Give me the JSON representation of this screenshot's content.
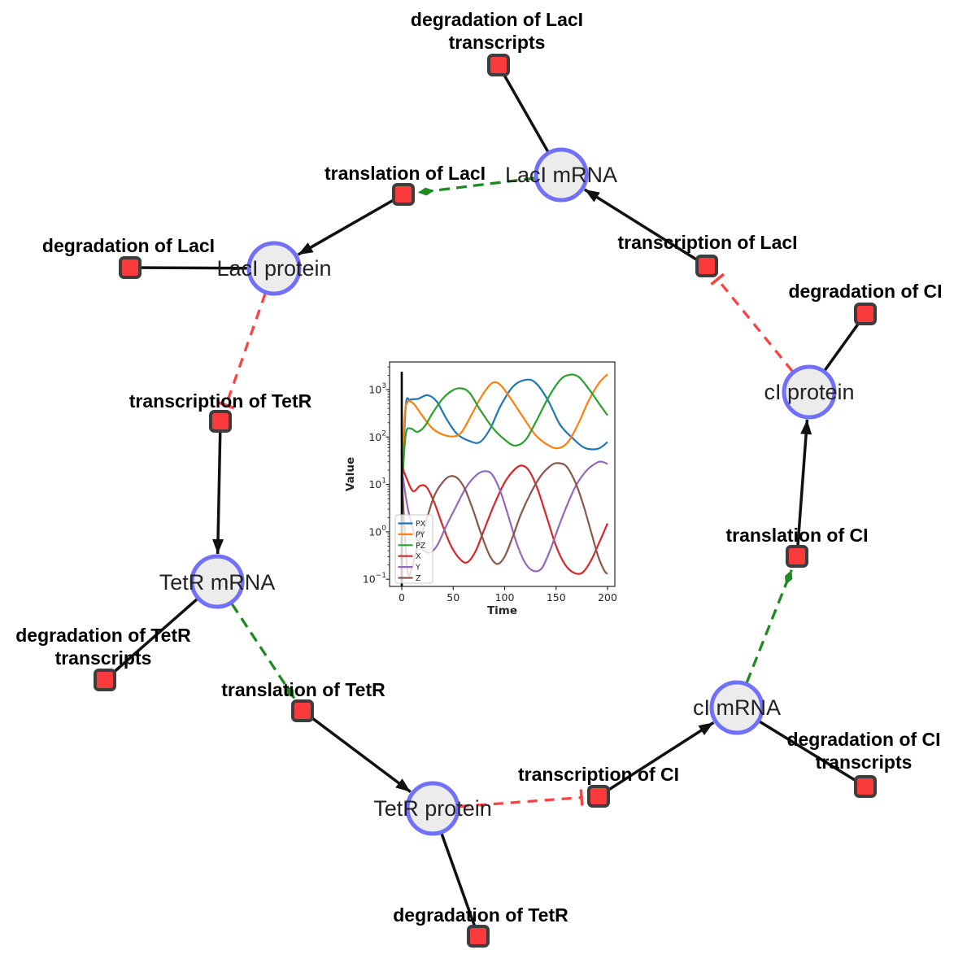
{
  "background": "#ffffff",
  "colors": {
    "species_fill": "#ececec",
    "species_border": "#7070fa",
    "reaction_fill": "#fb3b3b",
    "reaction_border": "#3d3d3d",
    "edge": "#111111",
    "modifier_edge": "#1e8b22",
    "inhibition_edge": "#fb4343",
    "chart_spine": "#262626",
    "vline": "#000000"
  },
  "network": {
    "species": [
      {
        "id": "laci_mrna",
        "label": "LacI mRNA"
      },
      {
        "id": "laci_protein",
        "label": "LacI protein"
      },
      {
        "id": "tetr_mrna",
        "label": "TetR mRNA"
      },
      {
        "id": "tetr_protein",
        "label": "TetR protein"
      },
      {
        "id": "ci_mrna",
        "label": "cI mRNA"
      },
      {
        "id": "ci_protein",
        "label": "cI protein"
      }
    ],
    "reactions": [
      {
        "id": "deg_laci_tx",
        "lines": [
          "degradation of LacI",
          "transcripts"
        ]
      },
      {
        "id": "transl_laci",
        "lines": [
          "translation of LacI"
        ]
      },
      {
        "id": "deg_laci",
        "lines": [
          "degradation of LacI"
        ]
      },
      {
        "id": "txn_laci",
        "lines": [
          "transcription of LacI"
        ]
      },
      {
        "id": "deg_ci",
        "lines": [
          "degradation of CI"
        ]
      },
      {
        "id": "txn_tetr",
        "lines": [
          "transcription of TetR"
        ]
      },
      {
        "id": "deg_tetr_tx",
        "lines": [
          "degradation of TetR",
          "transcripts"
        ]
      },
      {
        "id": "transl_tetr",
        "lines": [
          "translation of TetR"
        ]
      },
      {
        "id": "deg_tetr",
        "lines": [
          "degradation of TetR"
        ]
      },
      {
        "id": "txn_ci",
        "lines": [
          "transcription of CI"
        ]
      },
      {
        "id": "deg_ci_tx",
        "lines": [
          "degradation of CI",
          "transcripts"
        ]
      },
      {
        "id": "transl_ci",
        "lines": [
          "translation of CI"
        ]
      }
    ],
    "edges": [
      {
        "source": "laci_mrna",
        "target": "deg_laci_tx",
        "type": "reactant"
      },
      {
        "source": "laci_protein",
        "target": "deg_laci",
        "type": "reactant"
      },
      {
        "source": "tetr_mrna",
        "target": "deg_tetr_tx",
        "type": "reactant"
      },
      {
        "source": "tetr_protein",
        "target": "deg_tetr",
        "type": "reactant"
      },
      {
        "source": "ci_mrna",
        "target": "deg_ci_tx",
        "type": "reactant"
      },
      {
        "source": "ci_protein",
        "target": "deg_ci",
        "type": "reactant"
      },
      {
        "source": "txn_laci",
        "target": "laci_mrna",
        "type": "product"
      },
      {
        "source": "transl_laci",
        "target": "laci_protein",
        "type": "product"
      },
      {
        "source": "txn_tetr",
        "target": "tetr_mrna",
        "type": "product"
      },
      {
        "source": "transl_tetr",
        "target": "tetr_protein",
        "type": "product"
      },
      {
        "source": "txn_ci",
        "target": "ci_mrna",
        "type": "product"
      },
      {
        "source": "transl_ci",
        "target": "ci_protein",
        "type": "product"
      },
      {
        "source": "laci_mrna",
        "target": "transl_laci",
        "type": "modifier"
      },
      {
        "source": "tetr_mrna",
        "target": "transl_tetr",
        "type": "modifier"
      },
      {
        "source": "ci_mrna",
        "target": "transl_ci",
        "type": "modifier"
      },
      {
        "source": "laci_protein",
        "target": "txn_tetr",
        "type": "inhibition"
      },
      {
        "source": "tetr_protein",
        "target": "txn_ci",
        "type": "inhibition"
      },
      {
        "source": "ci_protein",
        "target": "txn_laci",
        "type": "inhibition"
      }
    ]
  },
  "chart_data": {
    "type": "line",
    "title": "",
    "xlabel": "Time",
    "ylabel": "Value",
    "x_ticks": [
      0,
      50,
      100,
      150,
      200
    ],
    "xlim": [
      -12,
      207
    ],
    "y_scale": "log",
    "y_tick_exponents": [
      3,
      2,
      1,
      0,
      -1
    ],
    "ylim": [
      0.07,
      3800
    ],
    "grid": false,
    "legend_position": "lower left",
    "vline_x": 0,
    "series": [
      {
        "name": "PX",
        "color": "#1f77b4",
        "points": [
          [
            1,
            20
          ],
          [
            4,
            480
          ],
          [
            8,
            610
          ],
          [
            16,
            640
          ],
          [
            25,
            760
          ],
          [
            34,
            560
          ],
          [
            44,
            230
          ],
          [
            54,
            115
          ],
          [
            66,
            82
          ],
          [
            76,
            78
          ],
          [
            86,
            150
          ],
          [
            96,
            450
          ],
          [
            108,
            1150
          ],
          [
            120,
            1600
          ],
          [
            130,
            1400
          ],
          [
            142,
            600
          ],
          [
            154,
            180
          ],
          [
            166,
            95
          ],
          [
            176,
            62
          ],
          [
            184,
            55
          ],
          [
            192,
            58
          ],
          [
            200,
            78
          ]
        ]
      },
      {
        "name": "PY",
        "color": "#ff7f0e",
        "points": [
          [
            1,
            25
          ],
          [
            3,
            300
          ],
          [
            6,
            560
          ],
          [
            12,
            490
          ],
          [
            20,
            280
          ],
          [
            30,
            150
          ],
          [
            40,
            112
          ],
          [
            50,
            103
          ],
          [
            58,
            125
          ],
          [
            68,
            300
          ],
          [
            78,
            750
          ],
          [
            88,
            1380
          ],
          [
            96,
            1250
          ],
          [
            106,
            640
          ],
          [
            118,
            260
          ],
          [
            130,
            110
          ],
          [
            142,
            68
          ],
          [
            152,
            58
          ],
          [
            162,
            80
          ],
          [
            172,
            200
          ],
          [
            182,
            600
          ],
          [
            192,
            1400
          ],
          [
            200,
            2100
          ]
        ]
      },
      {
        "name": "PZ",
        "color": "#2ca02c",
        "points": [
          [
            1,
            16
          ],
          [
            4,
            120
          ],
          [
            9,
            150
          ],
          [
            15,
            128
          ],
          [
            22,
            165
          ],
          [
            30,
            320
          ],
          [
            40,
            650
          ],
          [
            50,
            980
          ],
          [
            58,
            1060
          ],
          [
            66,
            850
          ],
          [
            76,
            380
          ],
          [
            88,
            160
          ],
          [
            100,
            88
          ],
          [
            110,
            66
          ],
          [
            120,
            85
          ],
          [
            130,
            200
          ],
          [
            142,
            650
          ],
          [
            154,
            1600
          ],
          [
            163,
            2050
          ],
          [
            172,
            1850
          ],
          [
            183,
            950
          ],
          [
            192,
            500
          ],
          [
            200,
            285
          ]
        ]
      },
      {
        "name": "X",
        "color": "#d62728",
        "points": [
          [
            0,
            25
          ],
          [
            5,
            13
          ],
          [
            11,
            7.2
          ],
          [
            18,
            9.4
          ],
          [
            24,
            8.8
          ],
          [
            31,
            4.5
          ],
          [
            39,
            1.5
          ],
          [
            48,
            0.5
          ],
          [
            57,
            0.26
          ],
          [
            64,
            0.23
          ],
          [
            72,
            0.4
          ],
          [
            80,
            1.1
          ],
          [
            90,
            3.8
          ],
          [
            100,
            11
          ],
          [
            110,
            21
          ],
          [
            117,
            25
          ],
          [
            124,
            19
          ],
          [
            132,
            8
          ],
          [
            141,
            2
          ],
          [
            150,
            0.5
          ],
          [
            159,
            0.2
          ],
          [
            168,
            0.135
          ],
          [
            176,
            0.14
          ],
          [
            184,
            0.25
          ],
          [
            192,
            0.6
          ],
          [
            200,
            1.5
          ]
        ]
      },
      {
        "name": "Y",
        "color": "#9467bd",
        "points": [
          [
            0,
            22
          ],
          [
            5,
            4
          ],
          [
            11,
            1.1
          ],
          [
            18,
            0.5
          ],
          [
            26,
            0.36
          ],
          [
            34,
            0.5
          ],
          [
            43,
            1.3
          ],
          [
            53,
            3.5
          ],
          [
            63,
            9
          ],
          [
            73,
            16
          ],
          [
            81,
            19
          ],
          [
            88,
            16
          ],
          [
            96,
            7
          ],
          [
            104,
            2
          ],
          [
            112,
            0.55
          ],
          [
            120,
            0.22
          ],
          [
            128,
            0.15
          ],
          [
            136,
            0.17
          ],
          [
            144,
            0.4
          ],
          [
            152,
            1.2
          ],
          [
            161,
            3.8
          ],
          [
            170,
            10
          ],
          [
            180,
            20
          ],
          [
            190,
            29
          ],
          [
            195,
            30
          ],
          [
            200,
            27
          ]
        ]
      },
      {
        "name": "Z",
        "color": "#8c564b",
        "points": [
          [
            0,
            18
          ],
          [
            3,
            0.9
          ],
          [
            6,
            0.13
          ],
          [
            10,
            0.18
          ],
          [
            16,
            0.55
          ],
          [
            24,
            1.8
          ],
          [
            32,
            6
          ],
          [
            41,
            12
          ],
          [
            48,
            15
          ],
          [
            55,
            13
          ],
          [
            62,
            7.5
          ],
          [
            70,
            2.6
          ],
          [
            78,
            0.8
          ],
          [
            86,
            0.3
          ],
          [
            93,
            0.21
          ],
          [
            100,
            0.3
          ],
          [
            108,
            0.8
          ],
          [
            116,
            2.4
          ],
          [
            126,
            7
          ],
          [
            136,
            16
          ],
          [
            146,
            26
          ],
          [
            153,
            28
          ],
          [
            160,
            24
          ],
          [
            168,
            12
          ],
          [
            176,
            4
          ],
          [
            184,
            1
          ],
          [
            191,
            0.3
          ],
          [
            197,
            0.15
          ],
          [
            200,
            0.13
          ]
        ]
      }
    ]
  }
}
